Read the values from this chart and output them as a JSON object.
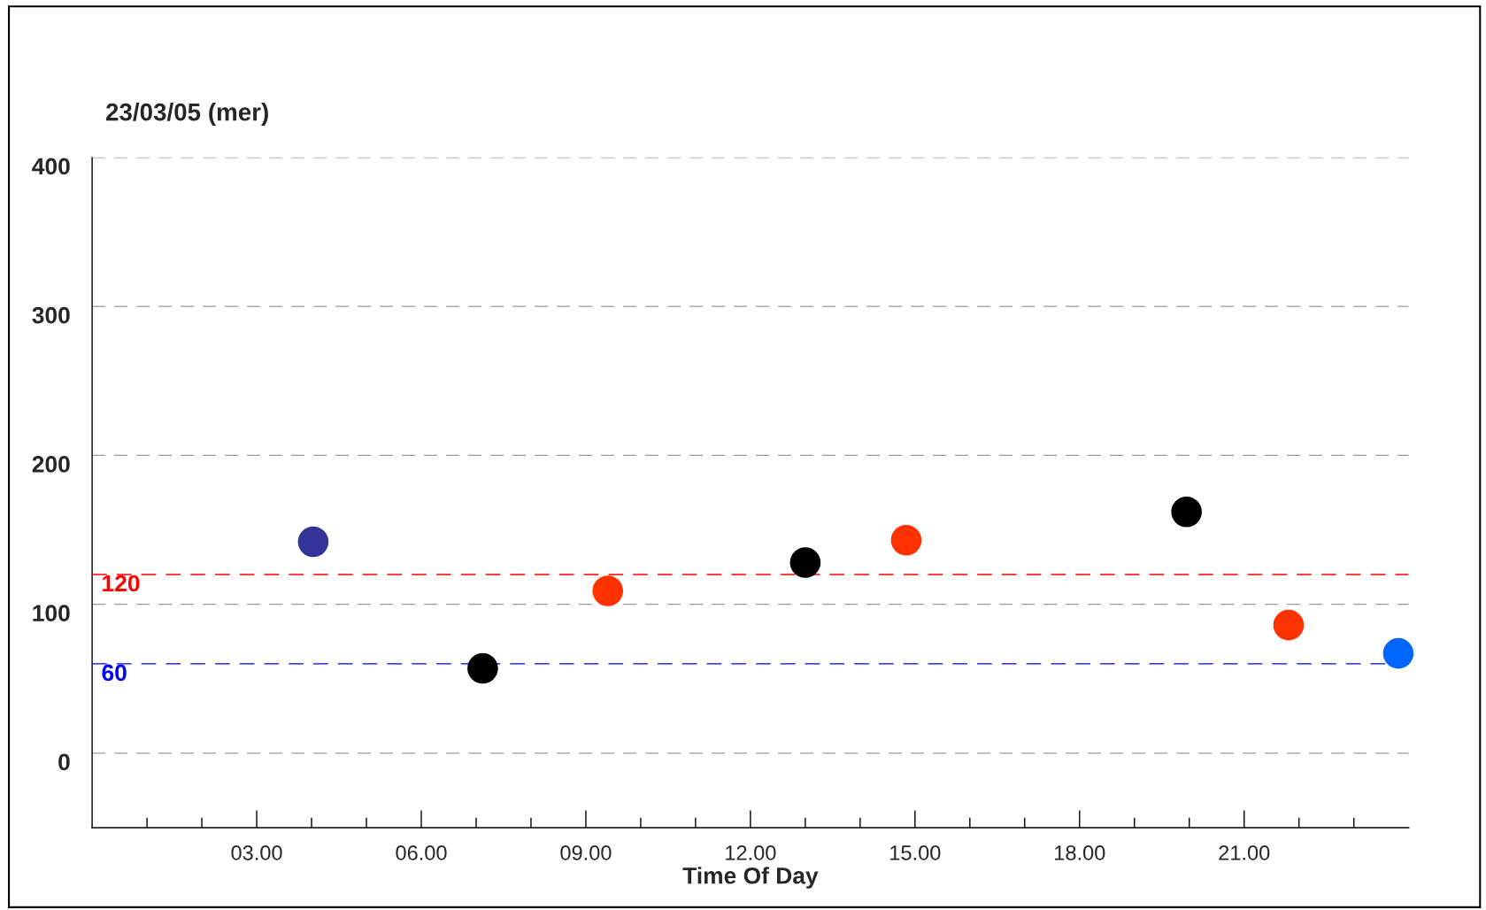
{
  "chart_data": {
    "type": "scatter",
    "title": "23/03/05 (mer)",
    "xlabel": "Time Of Day",
    "x": [
      4.03,
      7.12,
      9.4,
      13.0,
      14.84,
      19.95,
      21.81,
      23.81
    ],
    "series": [
      {
        "values": [
          142,
          57,
          109,
          128,
          143,
          162,
          86,
          67
        ],
        "colors": [
          "#333399",
          "#000000",
          "#ff3300",
          "#000000",
          "#ff3300",
          "#000000",
          "#ff3300",
          "#0066ff"
        ]
      }
    ],
    "xlim": [
      0,
      24
    ],
    "xticks": [
      {
        "value": 1,
        "label": null
      },
      {
        "value": 2,
        "label": null
      },
      {
        "value": 3,
        "label": "03.00"
      },
      {
        "value": 4,
        "label": null
      },
      {
        "value": 5,
        "label": null
      },
      {
        "value": 6,
        "label": "06.00"
      },
      {
        "value": 7,
        "label": null
      },
      {
        "value": 8,
        "label": null
      },
      {
        "value": 9,
        "label": "09.00"
      },
      {
        "value": 10,
        "label": null
      },
      {
        "value": 11,
        "label": null
      },
      {
        "value": 12,
        "label": "12.00"
      },
      {
        "value": 13,
        "label": null
      },
      {
        "value": 14,
        "label": null
      },
      {
        "value": 15,
        "label": "15.00"
      },
      {
        "value": 16,
        "label": null
      },
      {
        "value": 17,
        "label": null
      },
      {
        "value": 18,
        "label": "18.00"
      },
      {
        "value": 19,
        "label": null
      },
      {
        "value": 20,
        "label": null
      },
      {
        "value": 21,
        "label": "21.00"
      },
      {
        "value": 22,
        "label": null
      },
      {
        "value": 23,
        "label": null
      }
    ],
    "ylim": [
      -50,
      400
    ],
    "yticks": [
      0,
      100,
      200,
      300,
      400
    ],
    "grid": "y",
    "marker": "circle",
    "ref_lines": [
      {
        "axis": "y",
        "value": 120,
        "label": "120",
        "color": "#ff0000",
        "line_style": "dashed"
      },
      {
        "axis": "y",
        "value": 60,
        "label": "60",
        "color": "#0000ff",
        "line_style": "dashed"
      }
    ]
  }
}
